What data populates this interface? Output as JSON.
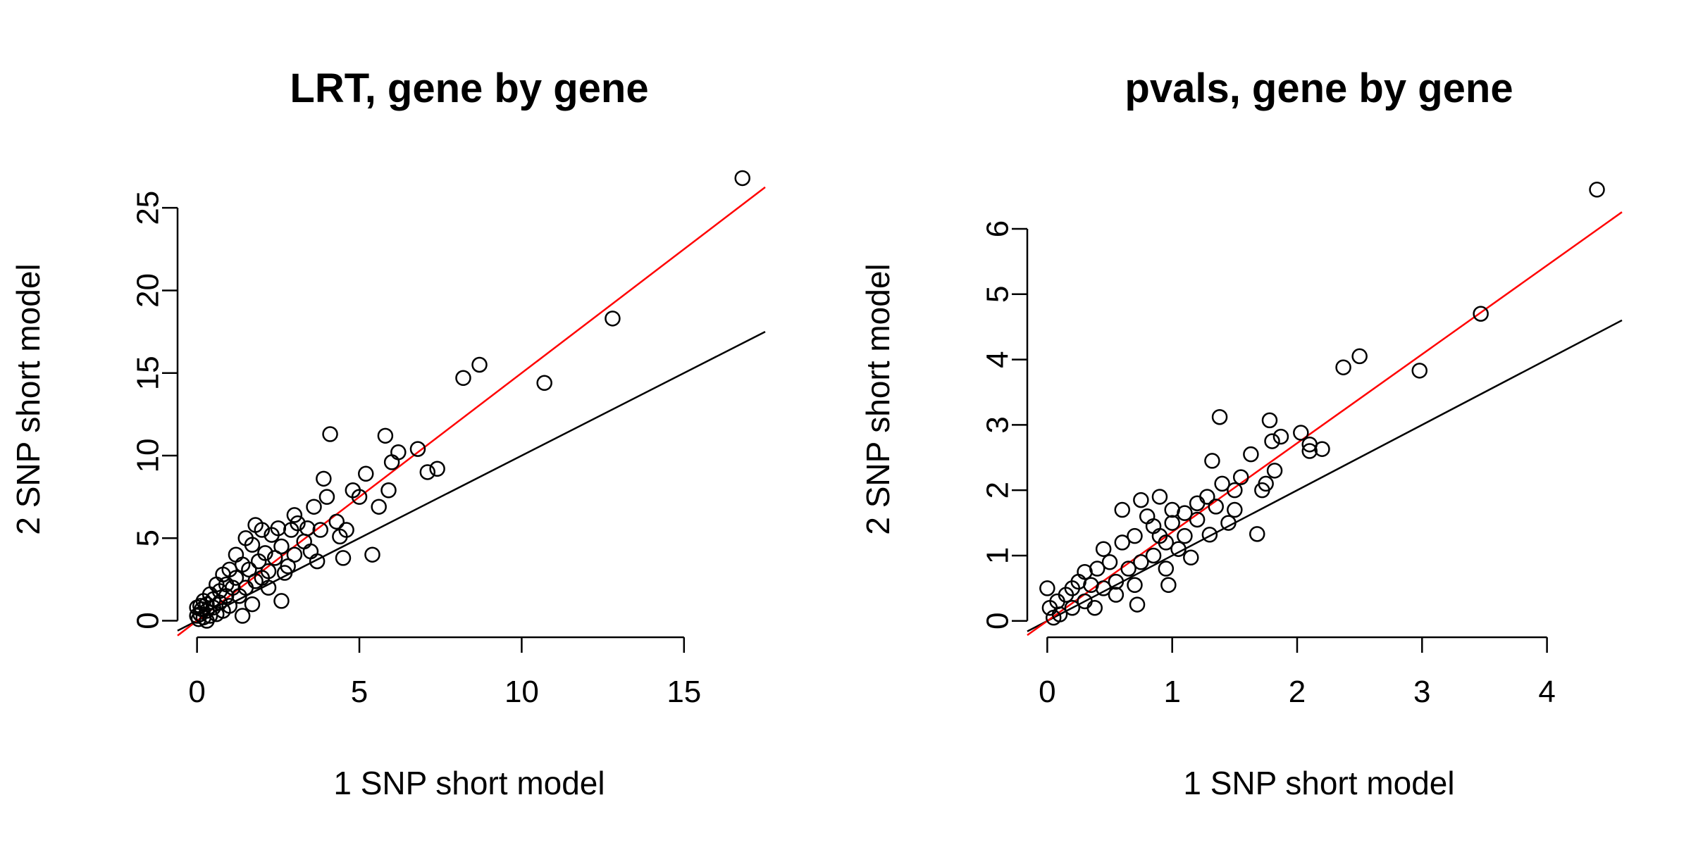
{
  "chart_data": [
    {
      "type": "scatter",
      "title": "LRT, gene by gene",
      "xlabel": "1 SNP short model",
      "ylabel": "2 SNP short model",
      "xlim": [
        -0.6,
        17.5
      ],
      "ylim": [
        -1.0,
        26.5
      ],
      "xticks": [
        "0",
        "5",
        "10",
        "15"
      ],
      "xtick_values": [
        0,
        5,
        10,
        15
      ],
      "yticks": [
        "0",
        "5",
        "10",
        "15",
        "20",
        "25"
      ],
      "ytick_values": [
        0,
        5,
        10,
        15,
        20,
        25
      ],
      "grid": false,
      "marker": "open-circle",
      "lines": [
        {
          "kind": "reference",
          "color": "#000000",
          "intercept": 0,
          "slope": 1
        },
        {
          "kind": "fit",
          "color": "#ff0000",
          "intercept": 0,
          "slope": 1.5
        }
      ],
      "points": [
        [
          16.8,
          26.8
        ],
        [
          12.8,
          18.3
        ],
        [
          10.7,
          14.4
        ],
        [
          8.7,
          15.5
        ],
        [
          8.2,
          14.7
        ],
        [
          7.4,
          9.2
        ],
        [
          7.1,
          9.0
        ],
        [
          6.8,
          10.4
        ],
        [
          6.2,
          10.2
        ],
        [
          6.0,
          9.6
        ],
        [
          5.9,
          7.9
        ],
        [
          5.8,
          11.2
        ],
        [
          5.6,
          6.9
        ],
        [
          5.4,
          4.0
        ],
        [
          5.2,
          8.9
        ],
        [
          5.0,
          7.5
        ],
        [
          4.8,
          7.9
        ],
        [
          4.6,
          5.5
        ],
        [
          4.4,
          5.1
        ],
        [
          4.3,
          6.0
        ],
        [
          4.1,
          11.3
        ],
        [
          4.0,
          7.5
        ],
        [
          3.9,
          8.6
        ],
        [
          3.8,
          5.5
        ],
        [
          3.7,
          3.6
        ],
        [
          3.6,
          6.9
        ],
        [
          3.4,
          5.6
        ],
        [
          3.3,
          4.8
        ],
        [
          3.1,
          5.9
        ],
        [
          3.0,
          6.4
        ],
        [
          3.0,
          4.0
        ],
        [
          2.9,
          5.5
        ],
        [
          2.8,
          3.3
        ],
        [
          2.7,
          2.9
        ],
        [
          2.6,
          4.5
        ],
        [
          2.5,
          5.6
        ],
        [
          2.4,
          3.8
        ],
        [
          2.3,
          5.2
        ],
        [
          2.2,
          3.0
        ],
        [
          2.1,
          4.1
        ],
        [
          2.0,
          5.5
        ],
        [
          2.0,
          2.6
        ],
        [
          1.9,
          3.6
        ],
        [
          1.8,
          5.8
        ],
        [
          1.8,
          2.4
        ],
        [
          1.7,
          4.6
        ],
        [
          1.7,
          1.0
        ],
        [
          1.6,
          3.1
        ],
        [
          1.5,
          2.0
        ],
        [
          1.5,
          5.0
        ],
        [
          1.4,
          3.4
        ],
        [
          1.3,
          1.5
        ],
        [
          1.2,
          2.6
        ],
        [
          1.2,
          4.0
        ],
        [
          1.1,
          2.0
        ],
        [
          1.0,
          3.1
        ],
        [
          1.0,
          0.9
        ],
        [
          0.9,
          2.2
        ],
        [
          0.9,
          1.5
        ],
        [
          0.8,
          2.8
        ],
        [
          0.8,
          0.6
        ],
        [
          0.7,
          1.8
        ],
        [
          0.7,
          1.1
        ],
        [
          0.6,
          2.2
        ],
        [
          0.6,
          0.4
        ],
        [
          0.5,
          1.3
        ],
        [
          0.5,
          0.8
        ],
        [
          0.4,
          1.6
        ],
        [
          0.4,
          0.3
        ],
        [
          0.3,
          1.0
        ],
        [
          0.3,
          0.6
        ],
        [
          0.2,
          1.2
        ],
        [
          0.2,
          0.2
        ],
        [
          0.15,
          0.7
        ],
        [
          0.1,
          0.4
        ],
        [
          0.1,
          0.9
        ],
        [
          0.05,
          0.1
        ],
        [
          0.0,
          0.3
        ],
        [
          0.0,
          0.8
        ],
        [
          0.3,
          0.0
        ],
        [
          1.4,
          0.3
        ],
        [
          2.6,
          1.2
        ],
        [
          3.5,
          4.2
        ],
        [
          4.5,
          3.8
        ],
        [
          2.2,
          2.0
        ]
      ]
    },
    {
      "type": "scatter",
      "title": "pvals, gene by gene",
      "xlabel": "1 SNP short model",
      "ylabel": "2 SNP short model",
      "xlim": [
        -0.16,
        4.6
      ],
      "ylim": [
        -0.25,
        6.7
      ],
      "xticks": [
        "0",
        "1",
        "2",
        "3",
        "4"
      ],
      "xtick_values": [
        0,
        1,
        2,
        3,
        4
      ],
      "yticks": [
        "0",
        "1",
        "2",
        "3",
        "4",
        "5",
        "6"
      ],
      "ytick_values": [
        0,
        1,
        2,
        3,
        4,
        5,
        6
      ],
      "grid": false,
      "marker": "open-circle",
      "lines": [
        {
          "kind": "reference",
          "color": "#000000",
          "intercept": 0,
          "slope": 1
        },
        {
          "kind": "fit",
          "color": "#ff0000",
          "intercept": 0,
          "slope": 1.36
        }
      ],
      "points": [
        [
          4.4,
          6.6
        ],
        [
          3.47,
          4.7
        ],
        [
          2.98,
          3.83
        ],
        [
          2.5,
          4.05
        ],
        [
          2.37,
          3.88
        ],
        [
          2.2,
          2.63
        ],
        [
          2.1,
          2.6
        ],
        [
          2.1,
          2.7
        ],
        [
          2.03,
          2.88
        ],
        [
          1.87,
          2.82
        ],
        [
          1.82,
          2.3
        ],
        [
          1.8,
          2.75
        ],
        [
          1.78,
          3.07
        ],
        [
          1.75,
          2.1
        ],
        [
          1.72,
          2.0
        ],
        [
          1.68,
          1.33
        ],
        [
          1.63,
          2.55
        ],
        [
          1.55,
          2.2
        ],
        [
          1.5,
          1.7
        ],
        [
          1.45,
          1.5
        ],
        [
          1.4,
          2.1
        ],
        [
          1.38,
          3.12
        ],
        [
          1.32,
          2.45
        ],
        [
          1.3,
          1.32
        ],
        [
          1.28,
          1.9
        ],
        [
          1.2,
          1.8
        ],
        [
          1.15,
          0.97
        ],
        [
          1.1,
          1.65
        ],
        [
          1.05,
          1.1
        ],
        [
          1.0,
          1.5
        ],
        [
          0.97,
          0.55
        ],
        [
          0.95,
          0.8
        ],
        [
          0.9,
          1.3
        ],
        [
          0.85,
          1.0
        ],
        [
          0.8,
          1.6
        ],
        [
          0.75,
          0.9
        ],
        [
          0.72,
          0.25
        ],
        [
          0.7,
          1.3
        ],
        [
          0.65,
          0.8
        ],
        [
          0.6,
          1.2
        ],
        [
          0.55,
          0.6
        ],
        [
          0.5,
          0.9
        ],
        [
          0.45,
          0.5
        ],
        [
          0.4,
          0.8
        ],
        [
          0.38,
          0.2
        ],
        [
          0.35,
          0.55
        ],
        [
          0.3,
          0.3
        ],
        [
          0.25,
          0.6
        ],
        [
          0.2,
          0.2
        ],
        [
          0.15,
          0.4
        ],
        [
          0.1,
          0.1
        ],
        [
          0.08,
          0.3
        ],
        [
          0.05,
          0.05
        ],
        [
          0.02,
          0.2
        ],
        [
          0.0,
          0.5
        ],
        [
          0.6,
          1.7
        ],
        [
          0.75,
          1.85
        ],
        [
          0.9,
          1.9
        ],
        [
          1.0,
          1.7
        ],
        [
          1.2,
          1.55
        ],
        [
          1.35,
          1.75
        ],
        [
          1.5,
          2.0
        ],
        [
          0.45,
          1.1
        ],
        [
          0.3,
          0.75
        ],
        [
          0.2,
          0.5
        ],
        [
          0.85,
          1.45
        ],
        [
          0.7,
          0.55
        ],
        [
          1.1,
          1.3
        ],
        [
          0.55,
          0.4
        ],
        [
          0.95,
          1.2
        ]
      ]
    }
  ]
}
